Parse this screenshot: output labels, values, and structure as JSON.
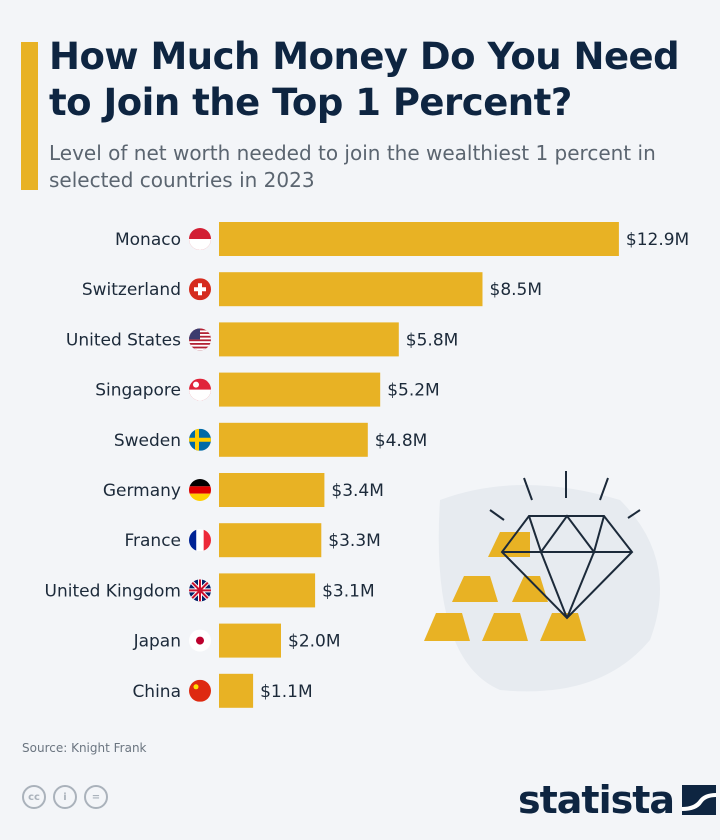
{
  "header": {
    "title": "How Much Money Do You Need to Join the Top 1 Percent?",
    "subtitle": "Level of net worth needed to join the wealthiest 1 percent in selected countries in 2023"
  },
  "chart_data": {
    "type": "bar",
    "orientation": "horizontal",
    "title": "How Much Money Do You Need to Join the Top 1 Percent?",
    "categories": [
      "Monaco",
      "Switzerland",
      "United States",
      "Singapore",
      "Sweden",
      "Germany",
      "France",
      "United Kingdom",
      "Japan",
      "China"
    ],
    "values": [
      12.9,
      8.5,
      5.8,
      5.2,
      4.8,
      3.4,
      3.3,
      3.1,
      2.0,
      1.1
    ],
    "labels": [
      "$12.9M",
      "$8.5M",
      "$5.8M",
      "$5.2M",
      "$4.8M",
      "$3.4M",
      "$3.3M",
      "$3.1M",
      "$2.0M",
      "$1.1M"
    ],
    "unit": "million USD",
    "grid": false,
    "bar_color": "#e8b224"
  },
  "footer": {
    "source": "Source: Knight Frank",
    "logo": "statista",
    "cc_icons": [
      "cc",
      "by",
      "nd"
    ]
  },
  "colors": {
    "title": "#0e2541",
    "accent": "#e8b224",
    "background": "#f3f5f8"
  }
}
